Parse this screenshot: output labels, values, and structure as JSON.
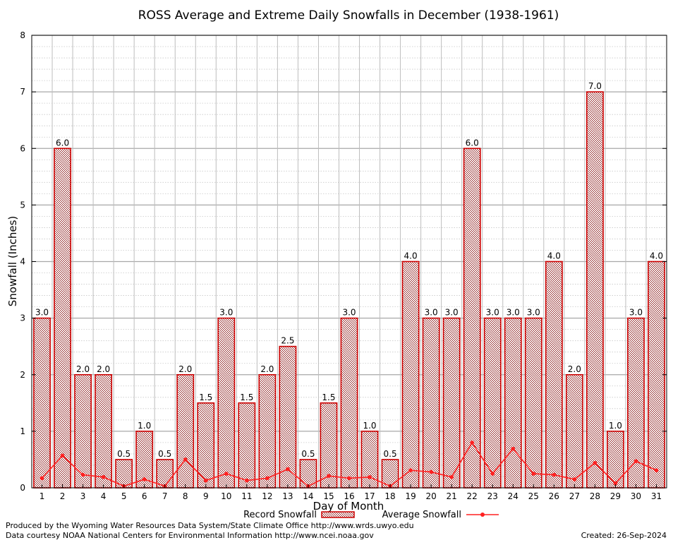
{
  "chart_data": {
    "type": "bar",
    "title": "ROSS Average and Extreme Daily Snowfalls in December (1938-1961)",
    "xlabel": "Day of Month",
    "ylabel": "Snowfall (Inches)",
    "ylim": [
      0,
      8
    ],
    "yticks": [
      0,
      1,
      2,
      3,
      4,
      5,
      6,
      7,
      8
    ],
    "grid": true,
    "legend_position": "bottom-center",
    "categories": [
      "1",
      "2",
      "3",
      "4",
      "5",
      "6",
      "7",
      "8",
      "9",
      "10",
      "11",
      "12",
      "13",
      "14",
      "15",
      "16",
      "17",
      "18",
      "19",
      "20",
      "21",
      "22",
      "23",
      "24",
      "25",
      "26",
      "27",
      "28",
      "29",
      "30",
      "31"
    ],
    "series": [
      {
        "name": "Record Snowfall",
        "type": "bar",
        "color": "#cc0000",
        "values": [
          3.0,
          6.0,
          2.0,
          2.0,
          0.5,
          1.0,
          0.5,
          2.0,
          1.5,
          3.0,
          1.5,
          2.0,
          2.5,
          0.5,
          1.5,
          3.0,
          1.0,
          0.5,
          4.0,
          3.0,
          3.0,
          6.0,
          3.0,
          3.0,
          3.0,
          4.0,
          2.0,
          7.0,
          1.0,
          3.0,
          4.0
        ],
        "labels": [
          "3.0",
          "6.0",
          "2.0",
          "2.0",
          "0.5",
          "1.0",
          "0.5",
          "2.0",
          "1.5",
          "3.0",
          "1.5",
          "2.0",
          "2.5",
          "0.5",
          "1.5",
          "3.0",
          "1.0",
          "0.5",
          "4.0",
          "3.0",
          "3.0",
          "6.0",
          "3.0",
          "3.0",
          "3.0",
          "4.0",
          "2.0",
          "7.0",
          "1.0",
          "3.0",
          "4.0"
        ]
      },
      {
        "name": "Average Snowfall",
        "type": "line",
        "color": "#ff2020",
        "values": [
          0.17,
          0.57,
          0.23,
          0.19,
          0.03,
          0.15,
          0.03,
          0.5,
          0.13,
          0.25,
          0.13,
          0.17,
          0.33,
          0.03,
          0.21,
          0.17,
          0.19,
          0.03,
          0.31,
          0.28,
          0.19,
          0.8,
          0.25,
          0.69,
          0.25,
          0.23,
          0.15,
          0.44,
          0.08,
          0.47,
          0.31
        ]
      }
    ]
  },
  "footer": {
    "produced_by": "Produced by the Wyoming Water Resources Data System/State Climate Office http://www.wrds.uwyo.edu",
    "data_courtesy": "Data courtesy NOAA National Centers for Environmental Information http://www.ncei.noaa.gov",
    "created": "Created:  26-Sep-2024"
  }
}
